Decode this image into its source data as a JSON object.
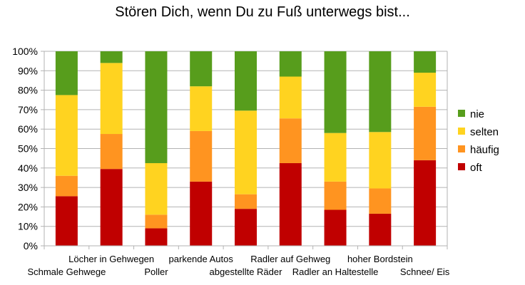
{
  "chart_data": {
    "type": "bar",
    "stacked": true,
    "percent": true,
    "title": "Stören Dich, wenn Du zu Fuß unterwegs bist...",
    "categories": [
      "Schmale Gehwege",
      "Löcher in Gehwegen",
      "Poller",
      "parkende Autos",
      "abgestellte Räder",
      "Radler auf Gehweg",
      "Radler an Haltestelle",
      "hoher Bordstein",
      "Schnee/ Eis"
    ],
    "series": [
      {
        "name": "oft",
        "color": "#c00000",
        "values": [
          25.5,
          39.5,
          9,
          33,
          19,
          42.5,
          18.5,
          16.5,
          44
        ]
      },
      {
        "name": "häufig",
        "color": "#ff9420",
        "values": [
          10.5,
          18,
          7,
          26,
          7.5,
          23,
          14.5,
          13,
          27.5
        ]
      },
      {
        "name": "selten",
        "color": "#ffd320",
        "values": [
          41.5,
          36.5,
          26.5,
          23,
          43,
          21.5,
          25,
          29,
          17.5
        ]
      },
      {
        "name": "nie",
        "color": "#579d1c",
        "values": [
          22.5,
          6,
          57.5,
          18,
          30.5,
          13,
          42,
          41.5,
          11
        ]
      }
    ],
    "ylim": [
      0,
      100
    ],
    "yticks": [
      "0%",
      "10%",
      "20%",
      "30%",
      "40%",
      "50%",
      "60%",
      "70%",
      "80%",
      "90%",
      "100%"
    ],
    "legend_position": "right",
    "grid": true
  }
}
